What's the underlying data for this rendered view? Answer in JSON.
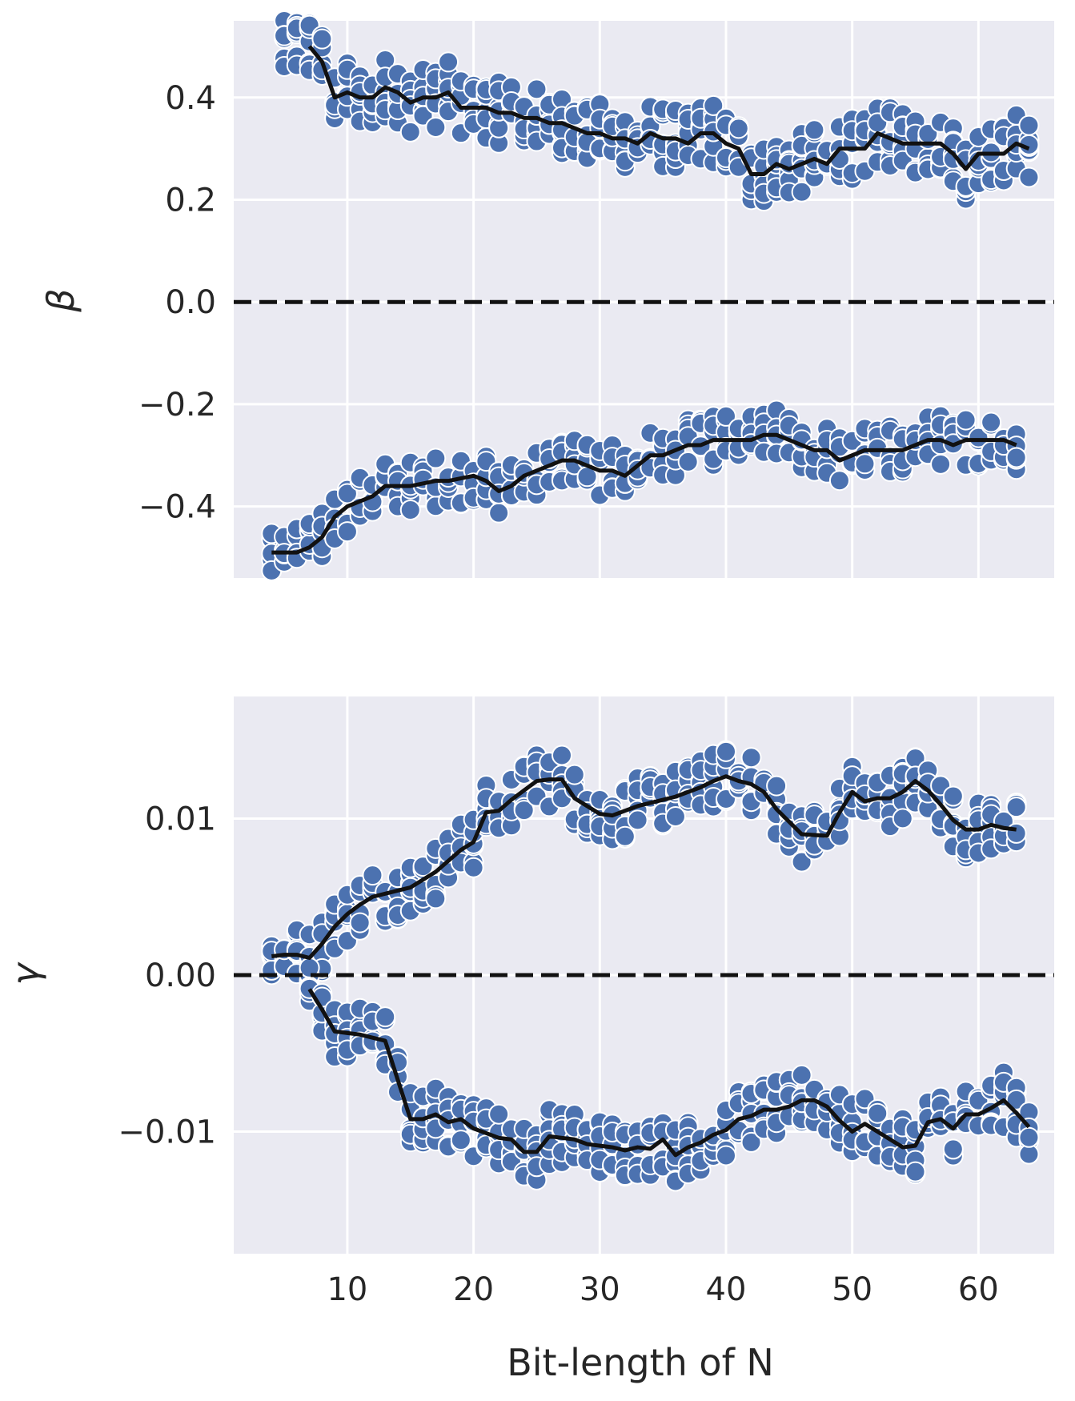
{
  "chart_data": [
    {
      "type": "scatter",
      "ylabel": "β",
      "xlabel": "",
      "xlim": [
        1,
        66
      ],
      "ylim": [
        -0.54,
        0.55
      ],
      "xticks": [
        10,
        20,
        30,
        40,
        50,
        60
      ],
      "xtick_labels": [
        "",
        "",
        "",
        "",
        "",
        ""
      ],
      "yticks": [
        -0.4,
        -0.2,
        0.0,
        0.2,
        0.4
      ],
      "ytick_labels": [
        "−0.4",
        "−0.2",
        "0.0",
        "0.2",
        "0.4"
      ],
      "grid": true,
      "reference_line": {
        "y": 0,
        "style": "dashed"
      },
      "trend_upper": {
        "x": [
          7,
          8,
          9,
          10,
          11,
          12,
          13,
          14,
          15,
          16,
          17,
          18,
          19,
          20,
          21,
          22,
          23,
          24,
          25,
          26,
          27,
          28,
          29,
          30,
          31,
          32,
          33,
          34,
          35,
          36,
          37,
          38,
          39,
          40,
          41,
          42,
          43,
          44,
          45,
          46,
          47,
          48,
          49,
          50,
          51,
          52,
          53,
          54,
          55,
          56,
          57,
          58,
          59,
          60,
          61,
          62,
          63,
          64
        ],
        "y": [
          0.5,
          0.47,
          0.4,
          0.41,
          0.4,
          0.4,
          0.42,
          0.41,
          0.39,
          0.4,
          0.4,
          0.41,
          0.38,
          0.38,
          0.38,
          0.37,
          0.37,
          0.36,
          0.36,
          0.35,
          0.35,
          0.34,
          0.33,
          0.33,
          0.32,
          0.32,
          0.31,
          0.33,
          0.32,
          0.32,
          0.31,
          0.33,
          0.33,
          0.31,
          0.3,
          0.25,
          0.25,
          0.27,
          0.26,
          0.27,
          0.28,
          0.27,
          0.3,
          0.3,
          0.3,
          0.33,
          0.32,
          0.31,
          0.31,
          0.31,
          0.31,
          0.29,
          0.26,
          0.29,
          0.29,
          0.29,
          0.31,
          0.3
        ]
      },
      "trend_lower": {
        "x": [
          4,
          5,
          6,
          7,
          8,
          9,
          10,
          11,
          12,
          13,
          15,
          17,
          18,
          20,
          21,
          22,
          23,
          24,
          25,
          26,
          27,
          28,
          29,
          30,
          31,
          32,
          33,
          34,
          35,
          36,
          37,
          38,
          39,
          40,
          41,
          42,
          43,
          44,
          45,
          46,
          47,
          48,
          49,
          50,
          51,
          52,
          53,
          54,
          55,
          56,
          57,
          58,
          59,
          60,
          61,
          62,
          63
        ],
        "y": [
          -0.49,
          -0.49,
          -0.49,
          -0.48,
          -0.46,
          -0.42,
          -0.4,
          -0.39,
          -0.38,
          -0.36,
          -0.36,
          -0.35,
          -0.35,
          -0.34,
          -0.35,
          -0.37,
          -0.36,
          -0.34,
          -0.33,
          -0.32,
          -0.31,
          -0.31,
          -0.32,
          -0.33,
          -0.33,
          -0.34,
          -0.32,
          -0.3,
          -0.3,
          -0.29,
          -0.28,
          -0.28,
          -0.27,
          -0.27,
          -0.27,
          -0.27,
          -0.26,
          -0.26,
          -0.27,
          -0.28,
          -0.29,
          -0.29,
          -0.31,
          -0.3,
          -0.29,
          -0.29,
          -0.29,
          -0.29,
          -0.28,
          -0.27,
          -0.27,
          -0.28,
          -0.27,
          -0.27,
          -0.27,
          -0.27,
          -0.28
        ]
      },
      "scatter_upper": {
        "x_range": [
          5,
          64
        ],
        "spread": 0.06,
        "points_per_x": 7
      },
      "scatter_lower": {
        "x_range": [
          4,
          63
        ],
        "spread": 0.05,
        "points_per_x": 5
      },
      "color": "#4c72b0"
    },
    {
      "type": "scatter",
      "ylabel": "γ",
      "xlabel": "Bit-length of N",
      "xlim": [
        1,
        66
      ],
      "ylim": [
        -0.0178,
        0.0178
      ],
      "xticks": [
        10,
        20,
        30,
        40,
        50,
        60
      ],
      "xtick_labels": [
        "10",
        "20",
        "30",
        "40",
        "50",
        "60"
      ],
      "yticks": [
        -0.01,
        0.0,
        0.01
      ],
      "ytick_labels": [
        "−0.01",
        "0.00",
        "0.01"
      ],
      "grid": true,
      "reference_line": {
        "y": 0,
        "style": "dashed"
      },
      "trend_upper": {
        "x": [
          4,
          5,
          6,
          7,
          8,
          9,
          10,
          11,
          12,
          13,
          15,
          17,
          19,
          20,
          21,
          22,
          23,
          24,
          25,
          26,
          27,
          28,
          29,
          30,
          31,
          32,
          33,
          34,
          35,
          36,
          37,
          38,
          39,
          40,
          41,
          42,
          43,
          44,
          46,
          48,
          49,
          50,
          51,
          52,
          53,
          54,
          55,
          56,
          57,
          58,
          59,
          60,
          61,
          62,
          63
        ],
        "y": [
          0.0012,
          0.0013,
          0.0013,
          0.0011,
          0.002,
          0.0031,
          0.0039,
          0.0045,
          0.005,
          0.0052,
          0.0056,
          0.0066,
          0.008,
          0.0085,
          0.0104,
          0.0105,
          0.0112,
          0.0118,
          0.0124,
          0.0125,
          0.0125,
          0.0113,
          0.0108,
          0.0103,
          0.0102,
          0.0105,
          0.0108,
          0.011,
          0.0112,
          0.0114,
          0.0117,
          0.012,
          0.0124,
          0.0127,
          0.0124,
          0.0122,
          0.0117,
          0.0106,
          0.009,
          0.0089,
          0.0104,
          0.0117,
          0.0111,
          0.0113,
          0.0113,
          0.0117,
          0.0124,
          0.0118,
          0.0109,
          0.0099,
          0.0093,
          0.0093,
          0.0096,
          0.0094,
          0.0093
        ]
      },
      "trend_lower": {
        "x": [
          7,
          8,
          9,
          10,
          11,
          12,
          13,
          15,
          16,
          17,
          18,
          19,
          20,
          21,
          22,
          23,
          24,
          25,
          26,
          27,
          28,
          29,
          30,
          31,
          32,
          33,
          34,
          35,
          36,
          37,
          38,
          39,
          40,
          41,
          42,
          43,
          44,
          45,
          46,
          47,
          48,
          49,
          50,
          51,
          52,
          53,
          54,
          55,
          56,
          57,
          58,
          59,
          60,
          61,
          62,
          63,
          64
        ],
        "y": [
          -0.0009,
          -0.0022,
          -0.0036,
          -0.0037,
          -0.0038,
          -0.004,
          -0.0042,
          -0.0092,
          -0.0092,
          -0.0089,
          -0.0094,
          -0.0092,
          -0.0098,
          -0.0101,
          -0.0104,
          -0.0105,
          -0.0113,
          -0.0113,
          -0.0103,
          -0.0104,
          -0.0105,
          -0.0108,
          -0.0109,
          -0.011,
          -0.0112,
          -0.011,
          -0.0111,
          -0.0105,
          -0.0115,
          -0.011,
          -0.0107,
          -0.0102,
          -0.0099,
          -0.0092,
          -0.009,
          -0.0086,
          -0.0086,
          -0.0084,
          -0.008,
          -0.008,
          -0.0084,
          -0.0093,
          -0.01,
          -0.0095,
          -0.01,
          -0.0105,
          -0.011,
          -0.0109,
          -0.0094,
          -0.0092,
          -0.0098,
          -0.0089,
          -0.0089,
          -0.0085,
          -0.008,
          -0.0088,
          -0.0097
        ]
      },
      "scatter_upper": {
        "x_range": [
          4,
          63
        ],
        "spread": 0.0018,
        "points_per_x": 6
      },
      "scatter_lower": {
        "x_range": [
          7,
          64
        ],
        "spread": 0.0018,
        "points_per_x": 6
      },
      "color": "#4c72b0"
    }
  ]
}
